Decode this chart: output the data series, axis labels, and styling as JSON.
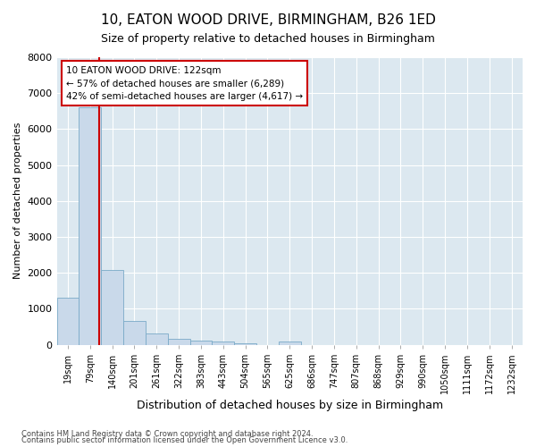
{
  "title": "10, EATON WOOD DRIVE, BIRMINGHAM, B26 1ED",
  "subtitle": "Size of property relative to detached houses in Birmingham",
  "xlabel": "Distribution of detached houses by size in Birmingham",
  "ylabel": "Number of detached properties",
  "footnote1": "Contains HM Land Registry data © Crown copyright and database right 2024.",
  "footnote2": "Contains public sector information licensed under the Open Government Licence v3.0.",
  "bin_labels": [
    "19sqm",
    "79sqm",
    "140sqm",
    "201sqm",
    "261sqm",
    "322sqm",
    "383sqm",
    "443sqm",
    "504sqm",
    "565sqm",
    "625sqm",
    "686sqm",
    "747sqm",
    "807sqm",
    "868sqm",
    "929sqm",
    "990sqm",
    "1050sqm",
    "1111sqm",
    "1172sqm",
    "1232sqm"
  ],
  "bar_values": [
    1300,
    6600,
    2080,
    650,
    310,
    150,
    110,
    80,
    50,
    0,
    90,
    0,
    0,
    0,
    0,
    0,
    0,
    0,
    0,
    0,
    0
  ],
  "bar_color": "#c9d9ea",
  "bar_edge_color": "#7aaac8",
  "property_line_color": "#cc0000",
  "property_line_x": 1.43,
  "ylim": [
    0,
    8000
  ],
  "yticks": [
    0,
    1000,
    2000,
    3000,
    4000,
    5000,
    6000,
    7000,
    8000
  ],
  "annotation_title": "10 EATON WOOD DRIVE: 122sqm",
  "annotation_line1": "← 57% of detached houses are smaller (6,289)",
  "annotation_line2": "42% of semi-detached houses are larger (4,617) →",
  "annotation_box_edgecolor": "#cc0000",
  "fig_bg": "#ffffff",
  "ax_bg": "#dce8f0",
  "grid_color": "#ffffff",
  "title_fontsize": 11,
  "subtitle_fontsize": 9,
  "xlabel_fontsize": 9,
  "ylabel_fontsize": 8
}
